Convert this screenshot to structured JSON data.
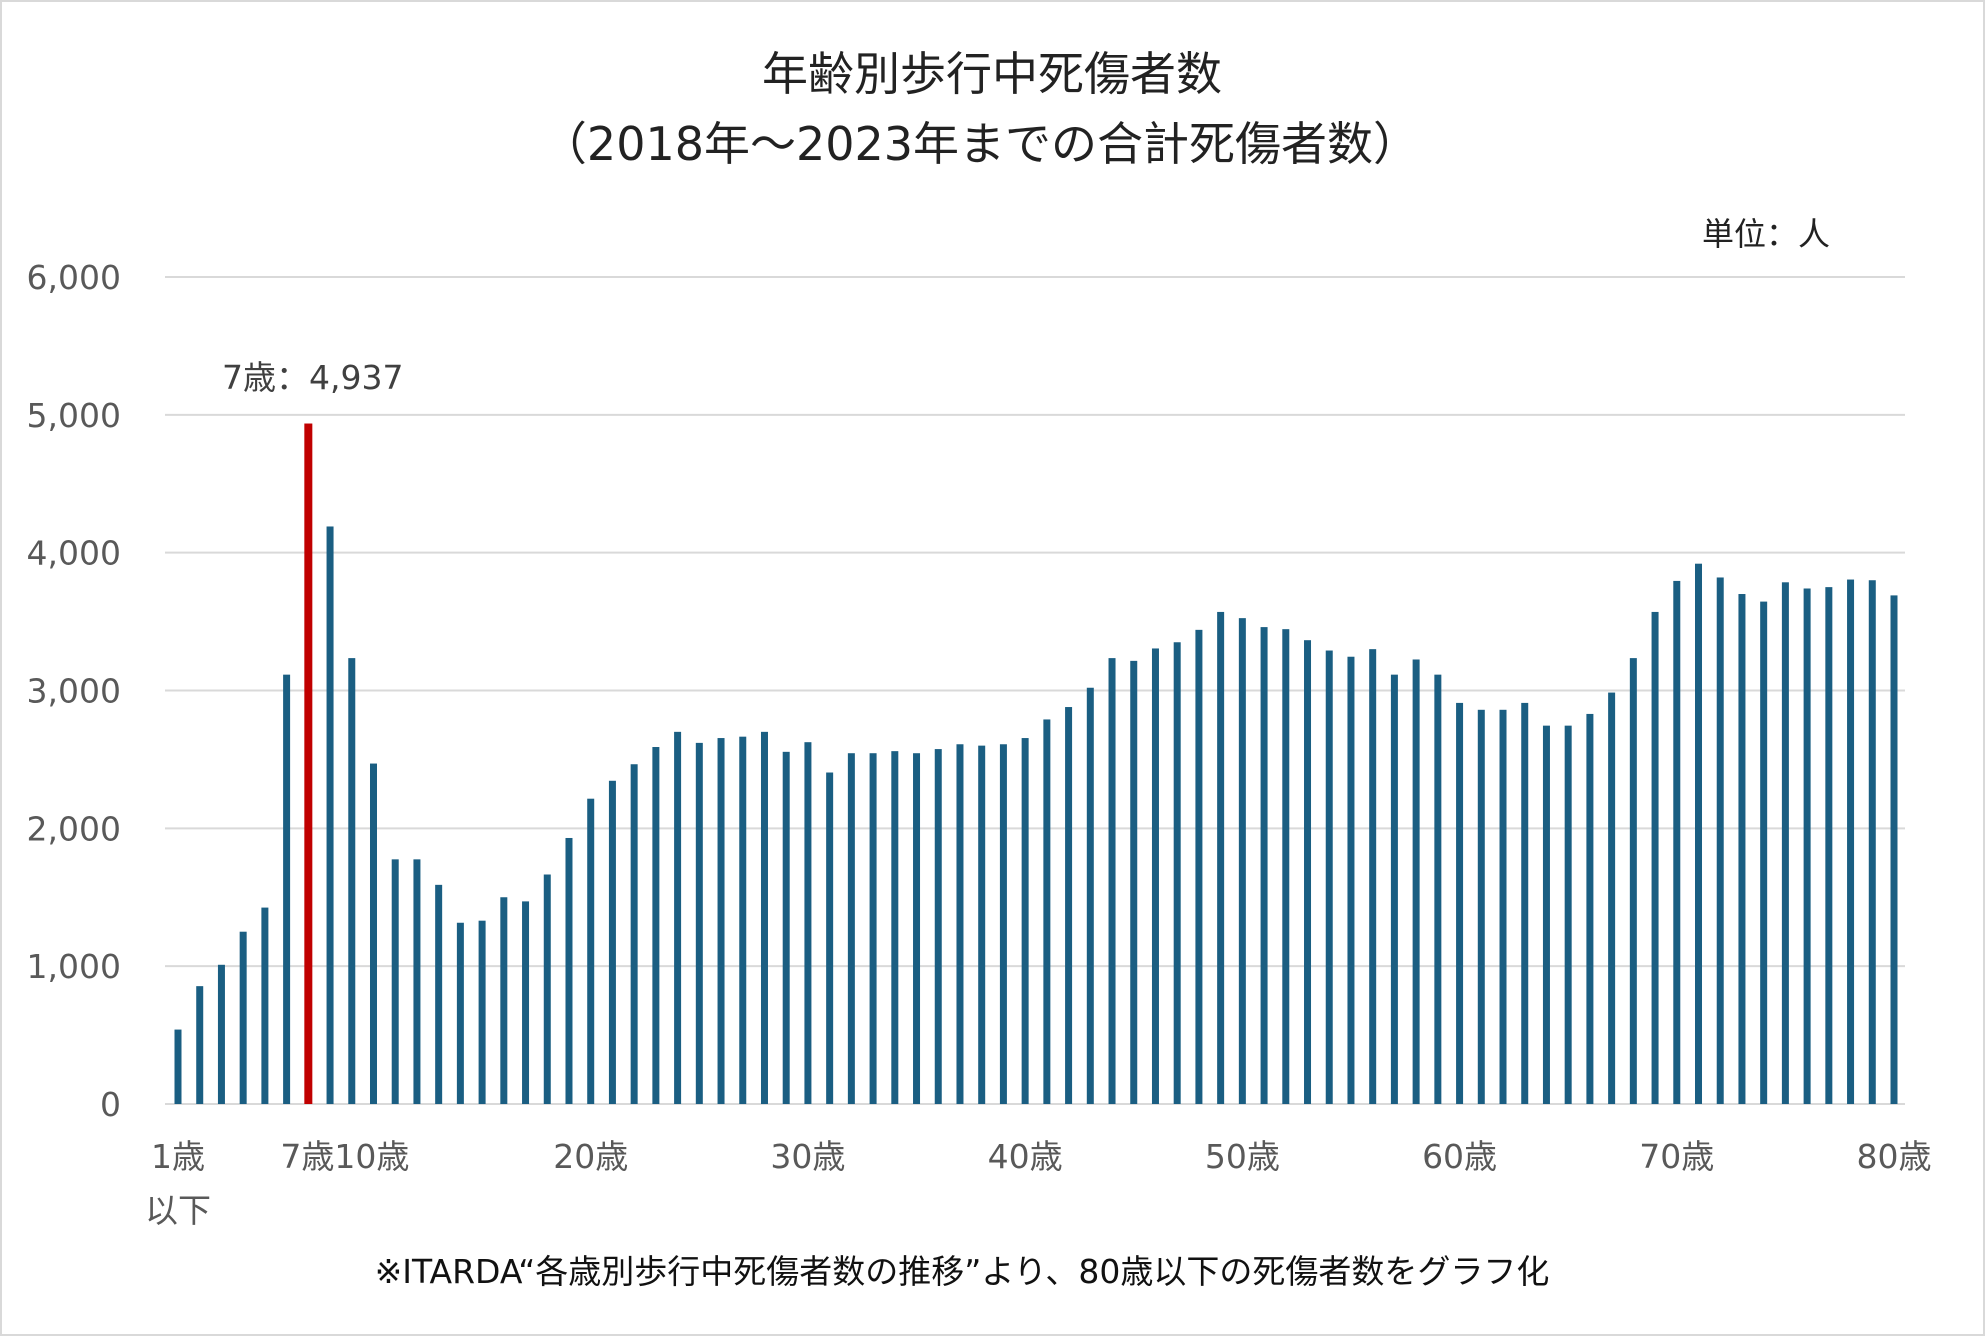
{
  "chart_data": {
    "type": "bar",
    "title": "年齢別歩行中死傷者数",
    "subtitle": "（2018年～2023年までの合計死傷者数）",
    "unit_label": "単位：人",
    "footnote": "※ITARDA“各歳別歩行中死傷者数の推移”より、80歳以下の死傷者数をグラフ化",
    "annotation": "7歳：4,937",
    "ylim": [
      0,
      6000
    ],
    "yticks": [
      "0",
      "1,000",
      "2,000",
      "3,000",
      "4,000",
      "5,000",
      "6,000"
    ],
    "grid": true,
    "xtick_labels": [
      {
        "age": 1,
        "line1": "1歳",
        "line2": "以下"
      },
      {
        "age": 7,
        "line1": "7歳"
      },
      {
        "age": 10,
        "line1": "10歳"
      },
      {
        "age": 20,
        "line1": "20歳"
      },
      {
        "age": 30,
        "line1": "30歳"
      },
      {
        "age": 40,
        "line1": "40歳"
      },
      {
        "age": 50,
        "line1": "50歳"
      },
      {
        "age": 60,
        "line1": "60歳"
      },
      {
        "age": 70,
        "line1": "70歳"
      },
      {
        "age": 80,
        "line1": "80歳"
      }
    ],
    "highlight_age": 7,
    "colors": {
      "bar": "#1a5e82",
      "highlight": "#c00000",
      "grid": "#d9d9d9"
    },
    "ages": [
      1,
      2,
      3,
      4,
      5,
      6,
      7,
      8,
      9,
      10,
      11,
      12,
      13,
      14,
      15,
      16,
      17,
      18,
      19,
      20,
      21,
      22,
      23,
      24,
      25,
      26,
      27,
      28,
      29,
      30,
      31,
      32,
      33,
      34,
      35,
      36,
      37,
      38,
      39,
      40,
      41,
      42,
      43,
      44,
      45,
      46,
      47,
      48,
      49,
      50,
      51,
      52,
      53,
      54,
      55,
      56,
      57,
      58,
      59,
      60,
      61,
      62,
      63,
      64,
      65,
      66,
      67,
      68,
      69,
      70,
      71,
      72,
      73,
      74,
      75,
      76,
      77,
      78,
      79,
      80
    ],
    "values": [
      540,
      855,
      1010,
      1250,
      1425,
      3115,
      4937,
      4190,
      3235,
      2470,
      1775,
      1775,
      1590,
      1315,
      1330,
      1500,
      1470,
      1665,
      1930,
      2215,
      2345,
      2465,
      2590,
      2700,
      2620,
      2655,
      2665,
      2700,
      2555,
      2625,
      2405,
      2545,
      2545,
      2560,
      2545,
      2575,
      2610,
      2600,
      2610,
      2655,
      2790,
      2880,
      3020,
      3235,
      3215,
      3305,
      3350,
      3440,
      3570,
      3525,
      3460,
      3445,
      3365,
      3290,
      3245,
      3300,
      3115,
      3225,
      3115,
      2910,
      2860,
      2860,
      2910,
      2745,
      2745,
      2830,
      2985,
      3235,
      3570,
      3795,
      3920,
      3820,
      3700,
      3645,
      3785,
      3740,
      3750,
      3805,
      3800,
      3690
    ]
  }
}
